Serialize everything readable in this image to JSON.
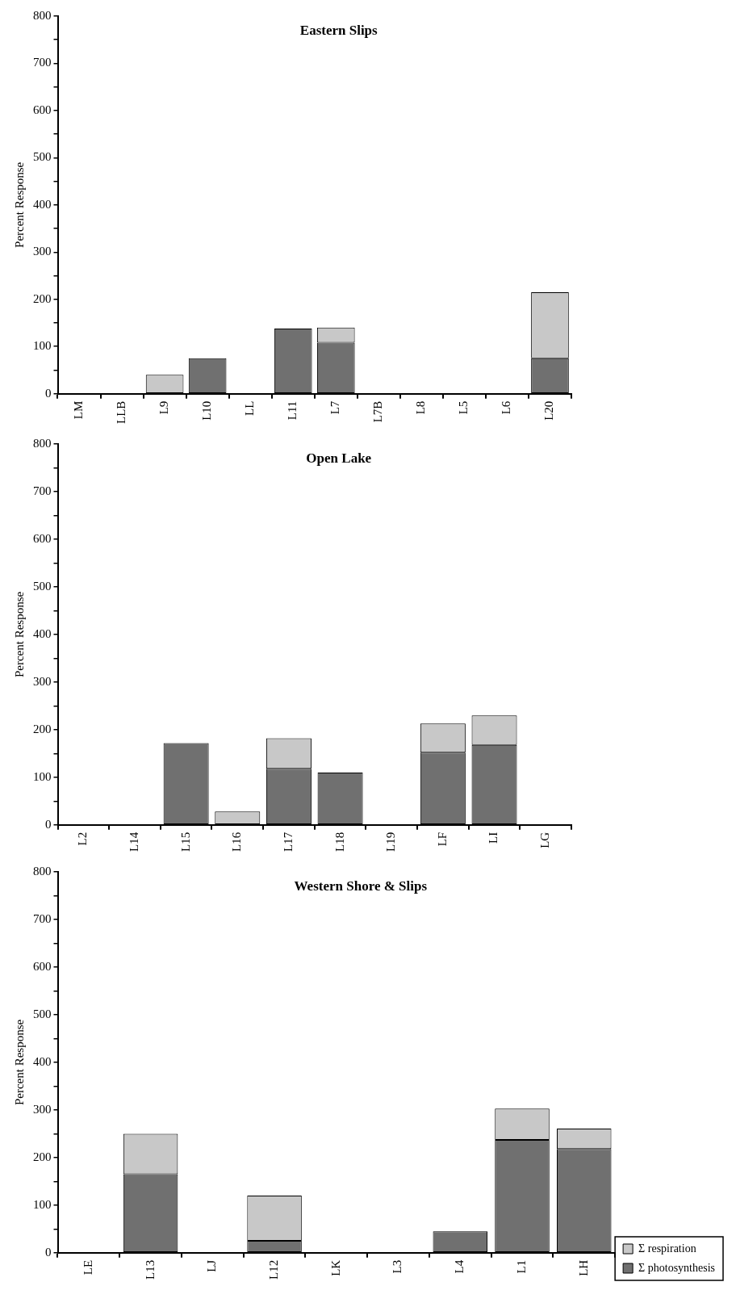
{
  "chart_data": [
    {
      "type": "bar",
      "title": "Eastern Slips",
      "ylabel": "Percent Response",
      "stacked": true,
      "categories": [
        "LM",
        "LLB",
        "L9",
        "L10",
        "LL",
        "L11",
        "L7",
        "L7B",
        "L8",
        "L5",
        "L6",
        "L20"
      ],
      "series": [
        {
          "color": "#707070",
          "values": [
            0,
            0,
            0,
            75,
            0,
            138,
            108,
            0,
            0,
            0,
            0,
            75
          ]
        },
        {
          "color": "#c8c8c8",
          "values": [
            0,
            0,
            40,
            0,
            0,
            0,
            32,
            0,
            0,
            0,
            0,
            140
          ]
        }
      ],
      "ylim": [
        0,
        800
      ],
      "yticks": [
        0,
        {
          "value": 50,
          "label": null
        },
        100,
        {
          "value": 150,
          "label": null
        },
        200,
        {
          "value": 250,
          "label": null
        },
        300,
        {
          "value": 350,
          "label": null
        },
        400,
        {
          "value": 450,
          "label": null
        },
        500,
        {
          "value": 550,
          "label": null
        },
        600,
        {
          "value": 650,
          "label": null
        },
        700,
        {
          "value": 750,
          "label": null
        },
        800
      ]
    },
    {
      "type": "bar",
      "title": "Open Lake",
      "ylabel": "Percent Response",
      "stacked": true,
      "categories": [
        "L2",
        "L14",
        "L15",
        "L16",
        "L17",
        "L18",
        "L19",
        "LF",
        "LI",
        "LG"
      ],
      "series": [
        {
          "color": "#707070",
          "values": [
            0,
            0,
            172,
            0,
            118,
            110,
            0,
            152,
            168,
            0
          ]
        },
        {
          "color": "#c8c8c8",
          "values": [
            0,
            0,
            0,
            28,
            64,
            0,
            0,
            61,
            62,
            0
          ]
        }
      ],
      "ylim": [
        0,
        800
      ],
      "yticks": [
        0,
        {
          "value": 50,
          "label": null
        },
        100,
        {
          "value": 150,
          "label": null
        },
        200,
        {
          "value": 250,
          "label": null
        },
        300,
        {
          "value": 350,
          "label": null
        },
        400,
        {
          "value": 450,
          "label": null
        },
        500,
        {
          "value": 550,
          "label": null
        },
        600,
        {
          "value": 650,
          "label": null
        },
        700,
        {
          "value": 750,
          "label": null
        },
        800
      ]
    },
    {
      "type": "bar",
      "title": "Western Shore & Slips",
      "ylabel": "Percent Response",
      "stacked": true,
      "legend": "right",
      "categories": [
        "LE",
        "L13",
        "LJ",
        "L12",
        "LK",
        "L3",
        "L4",
        "L1",
        "LH"
      ],
      "series": [
        {
          "name": "Σ photosynthesis",
          "color": "#707070",
          "values": [
            0,
            165,
            0,
            25,
            0,
            0,
            45,
            237,
            218
          ]
        },
        {
          "name": "Σ respiration",
          "color": "#c8c8c8",
          "values": [
            0,
            85,
            0,
            95,
            0,
            0,
            0,
            66,
            43
          ]
        }
      ],
      "ylim": [
        0,
        800
      ],
      "yticks": [
        0,
        {
          "value": 50,
          "label": null
        },
        100,
        {
          "value": 150,
          "label": null
        },
        200,
        {
          "value": 250,
          "label": null
        },
        300,
        {
          "value": 350,
          "label": null
        },
        400,
        {
          "value": 450,
          "label": null
        },
        500,
        {
          "value": 550,
          "label": null
        },
        600,
        {
          "value": 650,
          "label": null
        },
        700,
        {
          "value": 750,
          "label": null
        },
        800
      ]
    }
  ]
}
